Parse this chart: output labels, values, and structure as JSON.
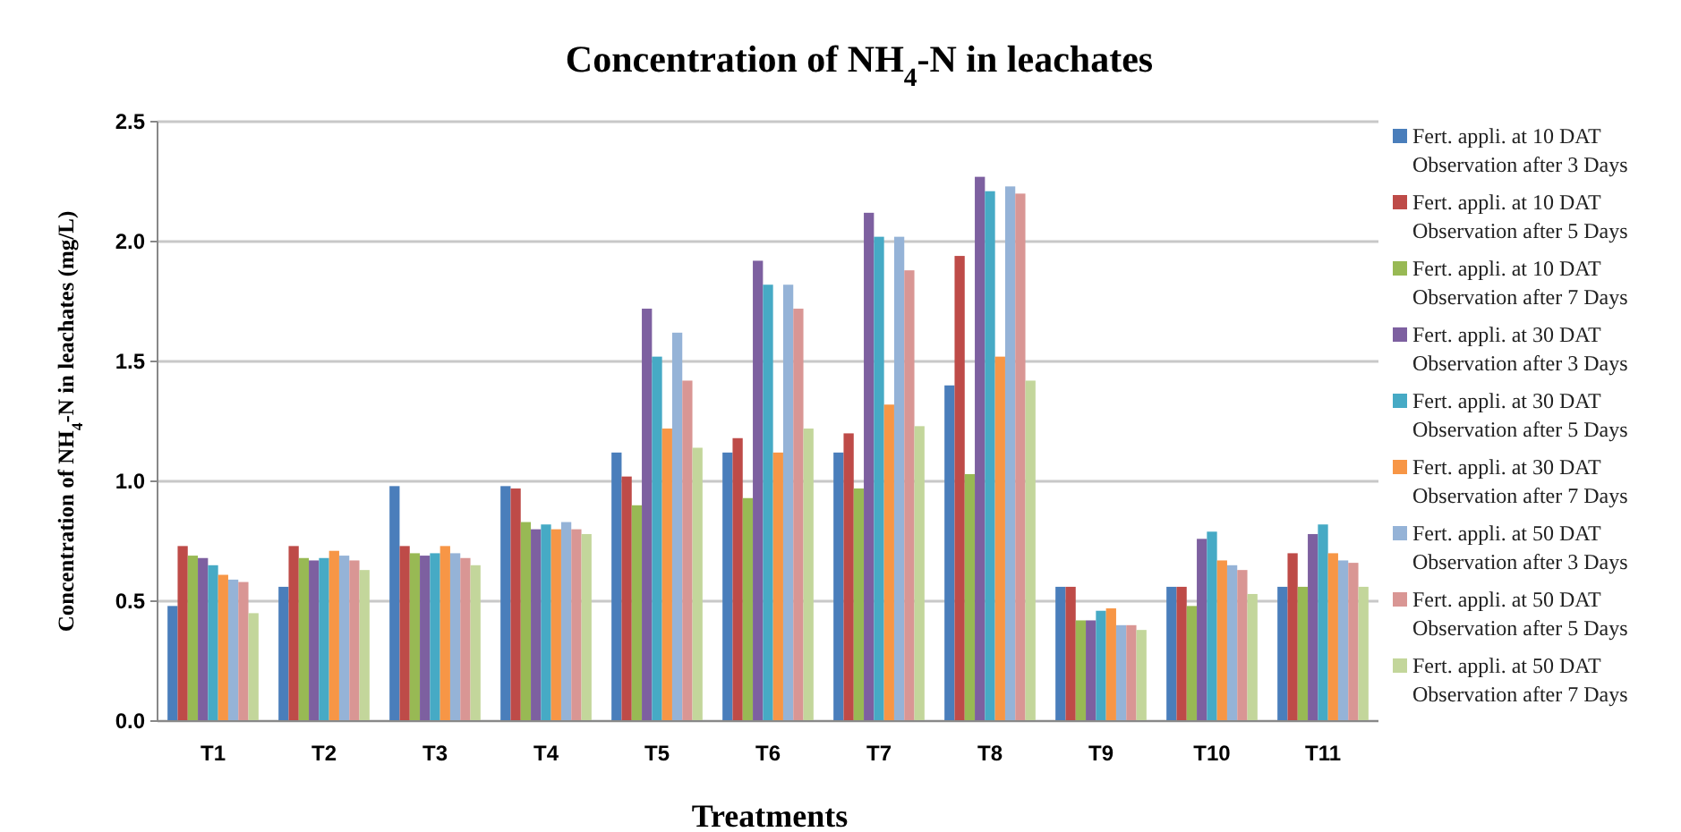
{
  "chart_data": {
    "type": "bar",
    "title": "Concentration of  NH$_{4}$-N in leachates",
    "xlabel": "Treatments",
    "ylabel": "Concentration of NH$_{4}$-N in leachates (mg/L)",
    "categories": [
      "T1",
      "T2",
      "T3",
      "T4",
      "T5",
      "T6",
      "T7",
      "T8",
      "T9",
      "T10",
      "T11"
    ],
    "ylim": [
      0,
      2.5
    ],
    "yticks": [
      {
        "value": 0,
        "label": "0.0"
      },
      {
        "value": 0.5,
        "label": "0.5"
      },
      {
        "value": 1,
        "label": "1.0"
      },
      {
        "value": 1.5,
        "label": "1.5"
      },
      {
        "value": 2,
        "label": "2.0"
      },
      {
        "value": 2.5,
        "label": "2.5"
      }
    ],
    "grid": "y",
    "legend": "right",
    "series": [
      {
        "name": "Fert. appli. at 10 DAT Observation after 3 Days",
        "color": "#4a7ebb",
        "values": [
          0.48,
          0.56,
          0.98,
          0.98,
          1.12,
          1.12,
          1.12,
          1.4,
          0.56,
          0.56,
          0.56
        ]
      },
      {
        "name": "Fert. appli. at 10 DAT Observation after 5 Days",
        "color": "#be4b48",
        "values": [
          0.73,
          0.73,
          0.73,
          0.97,
          1.02,
          1.18,
          1.2,
          1.94,
          0.56,
          0.56,
          0.7
        ]
      },
      {
        "name": "Fert. appli. at 10 DAT Observation after 7 Days",
        "color": "#98b954",
        "values": [
          0.69,
          0.68,
          0.7,
          0.83,
          0.9,
          0.93,
          0.97,
          1.03,
          0.42,
          0.48,
          0.56
        ]
      },
      {
        "name": "Fert. appli. at 30 DAT Observation after 3 Days",
        "color": "#7d60a0",
        "values": [
          0.68,
          0.67,
          0.69,
          0.8,
          1.72,
          1.92,
          2.12,
          2.27,
          0.42,
          0.76,
          0.78
        ]
      },
      {
        "name": "Fert. appli. at 30 DAT Observation after 5 Days",
        "color": "#46aac5",
        "values": [
          0.65,
          0.68,
          0.7,
          0.82,
          1.52,
          1.82,
          2.02,
          2.21,
          0.46,
          0.79,
          0.82
        ]
      },
      {
        "name": "Fert. appli. at 30 DAT Observation after 7 Days",
        "color": "#f79646",
        "values": [
          0.61,
          0.71,
          0.73,
          0.8,
          1.22,
          1.12,
          1.32,
          1.52,
          0.47,
          0.67,
          0.7
        ]
      },
      {
        "name": "Fert. appli. at 50 DAT Observation after 3 Days",
        "color": "#95b3d7",
        "values": [
          0.59,
          0.69,
          0.7,
          0.83,
          1.62,
          1.82,
          2.02,
          2.23,
          0.4,
          0.65,
          0.67
        ]
      },
      {
        "name": "Fert. appli. at 50 DAT Observation after 5 Days",
        "color": "#d99694",
        "values": [
          0.58,
          0.67,
          0.68,
          0.8,
          1.42,
          1.72,
          1.88,
          2.2,
          0.4,
          0.63,
          0.66
        ]
      },
      {
        "name": "Fert. appli. at 50 DAT Observation after 7 Days",
        "color": "#c3d69b",
        "values": [
          0.45,
          0.63,
          0.65,
          0.78,
          1.14,
          1.22,
          1.23,
          1.42,
          0.38,
          0.53,
          0.56
        ]
      }
    ]
  }
}
